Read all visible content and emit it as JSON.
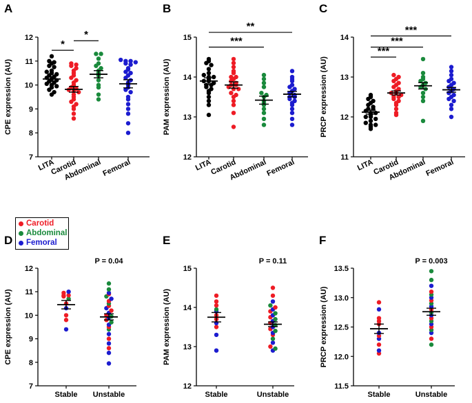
{
  "chart_data": [
    {
      "panel": "A",
      "type": "scatter",
      "ylabel": "CPE expression (AU)",
      "ylim": [
        7,
        12
      ],
      "yticks": [
        7,
        8,
        9,
        10,
        11,
        12
      ],
      "categories": [
        "LITA",
        "Carotid",
        "Abdominal",
        "Femoral"
      ],
      "groups": [
        {
          "name": "LITA",
          "color": "black",
          "mean": 10.25,
          "sem": 0.1,
          "values": [
            11.2,
            11.0,
            10.95,
            10.9,
            10.8,
            10.75,
            10.6,
            10.55,
            10.5,
            10.45,
            10.4,
            10.35,
            10.3,
            10.25,
            10.2,
            10.15,
            10.1,
            10.05,
            10.0,
            9.95,
            9.9,
            9.8,
            9.7,
            9.6
          ]
        },
        {
          "name": "Carotid",
          "color": "red",
          "mean": 9.82,
          "sem": 0.12,
          "values": [
            10.9,
            10.85,
            10.8,
            10.7,
            10.6,
            10.5,
            10.4,
            10.3,
            10.2,
            10.1,
            10.0,
            9.9,
            9.85,
            9.8,
            9.75,
            9.7,
            9.6,
            9.5,
            9.4,
            9.3,
            9.2,
            9.1,
            9.0,
            8.8,
            8.6
          ]
        },
        {
          "name": "Abdominal",
          "color": "green",
          "mean": 10.45,
          "sem": 0.15,
          "values": [
            11.3,
            11.3,
            11.1,
            10.9,
            10.8,
            10.7,
            10.6,
            10.5,
            10.4,
            10.2,
            10.0,
            9.9,
            9.6,
            9.4
          ]
        },
        {
          "name": "Femoral",
          "color": "blue",
          "mean": 10.05,
          "sem": 0.17,
          "values": [
            11.05,
            11.0,
            11.0,
            10.95,
            10.9,
            10.85,
            10.7,
            10.65,
            10.55,
            10.5,
            10.4,
            10.3,
            10.2,
            10.1,
            10.0,
            9.9,
            9.8,
            9.7,
            9.5,
            9.4,
            9.2,
            9.0,
            8.8,
            8.4,
            8.0
          ]
        }
      ],
      "significance": [
        {
          "from": "LITA",
          "to": "Carotid",
          "label": "*",
          "y": 11.45
        },
        {
          "from": "Carotid",
          "to": "Abdominal",
          "label": "*",
          "y": 11.85
        }
      ]
    },
    {
      "panel": "B",
      "type": "scatter",
      "ylabel": "PAM expression (AU)",
      "ylim": [
        12,
        15
      ],
      "yticks": [
        12,
        13,
        14,
        15
      ],
      "categories": [
        "LITA",
        "Carotid",
        "Abdominal",
        "Femoral"
      ],
      "groups": [
        {
          "name": "LITA",
          "color": "black",
          "mean": 13.9,
          "sem": 0.08,
          "values": [
            14.45,
            14.4,
            14.35,
            14.3,
            14.2,
            14.1,
            14.05,
            14.0,
            14.0,
            13.95,
            13.9,
            13.9,
            13.85,
            13.8,
            13.8,
            13.75,
            13.7,
            13.65,
            13.6,
            13.5,
            13.4,
            13.3,
            13.05
          ]
        },
        {
          "name": "Carotid",
          "color": "red",
          "mean": 13.8,
          "sem": 0.08,
          "values": [
            14.45,
            14.35,
            14.25,
            14.15,
            14.1,
            14.0,
            14.0,
            13.95,
            13.9,
            13.85,
            13.8,
            13.8,
            13.75,
            13.7,
            13.7,
            13.6,
            13.55,
            13.5,
            13.4,
            13.3,
            13.1,
            12.75
          ]
        },
        {
          "name": "Abdominal",
          "color": "green",
          "mean": 13.42,
          "sem": 0.1,
          "values": [
            14.05,
            13.95,
            13.85,
            13.75,
            13.6,
            13.55,
            13.5,
            13.4,
            13.35,
            13.3,
            13.2,
            13.1,
            12.95,
            12.8
          ]
        },
        {
          "name": "Femoral",
          "color": "blue",
          "mean": 13.57,
          "sem": 0.07,
          "values": [
            14.15,
            14.0,
            13.95,
            13.9,
            13.8,
            13.75,
            13.7,
            13.65,
            13.6,
            13.55,
            13.5,
            13.5,
            13.45,
            13.4,
            13.35,
            13.3,
            13.2,
            13.1,
            12.95,
            12.8
          ]
        }
      ],
      "significance": [
        {
          "from": "LITA",
          "to": "Abdominal",
          "label": "***",
          "y": 14.75
        },
        {
          "from": "LITA",
          "to": "Femoral",
          "label": "**",
          "y": 15.12
        }
      ]
    },
    {
      "panel": "C",
      "type": "scatter",
      "ylabel": "PRCP expression (AU)",
      "ylim": [
        11,
        14
      ],
      "yticks": [
        11,
        12,
        13,
        14
      ],
      "categories": [
        "LITA",
        "Carotid",
        "Abdominal",
        "Femoral"
      ],
      "groups": [
        {
          "name": "LITA",
          "color": "black",
          "mean": 12.12,
          "sem": 0.05,
          "values": [
            12.55,
            12.5,
            12.45,
            12.4,
            12.35,
            12.3,
            12.25,
            12.2,
            12.2,
            12.15,
            12.1,
            12.1,
            12.05,
            12.0,
            12.0,
            11.95,
            11.9,
            11.85,
            11.8,
            11.8,
            11.75,
            11.7
          ]
        },
        {
          "name": "Carotid",
          "color": "red",
          "mean": 12.6,
          "sem": 0.05,
          "values": [
            13.05,
            13.0,
            12.95,
            12.9,
            12.85,
            12.8,
            12.75,
            12.7,
            12.65,
            12.6,
            12.6,
            12.55,
            12.5,
            12.5,
            12.45,
            12.4,
            12.35,
            12.3,
            12.2,
            12.1,
            12.05
          ]
        },
        {
          "name": "Abdominal",
          "color": "green",
          "mean": 12.78,
          "sem": 0.08,
          "values": [
            13.45,
            13.1,
            13.0,
            12.95,
            12.9,
            12.85,
            12.8,
            12.75,
            12.7,
            12.6,
            12.5,
            12.4,
            11.9
          ]
        },
        {
          "name": "Femoral",
          "color": "blue",
          "mean": 12.68,
          "sem": 0.06,
          "values": [
            13.25,
            13.15,
            13.05,
            12.95,
            12.9,
            12.85,
            12.8,
            12.75,
            12.7,
            12.65,
            12.6,
            12.55,
            12.5,
            12.45,
            12.4,
            12.3,
            12.2,
            12.0
          ]
        }
      ],
      "significance": [
        {
          "from": "LITA",
          "to": "Carotid",
          "label": "***",
          "y": 13.5
        },
        {
          "from": "LITA",
          "to": "Abdominal",
          "label": "***",
          "y": 13.75
        },
        {
          "from": "LITA",
          "to": "Femoral",
          "label": "***",
          "y": 14.03
        }
      ]
    },
    {
      "panel": "D",
      "type": "scatter",
      "ylabel": "CPE expression (AU)",
      "ylim": [
        7,
        12
      ],
      "yticks": [
        7,
        8,
        9,
        10,
        11,
        12
      ],
      "categories": [
        "Stable",
        "Unstable"
      ],
      "pvalue": "P = 0.04",
      "groups": [
        {
          "name": "Stable",
          "mean": 10.45,
          "sem": 0.18,
          "points": [
            {
              "v": 10.95,
              "c": "red"
            },
            {
              "v": 10.85,
              "c": "red"
            },
            {
              "v": 10.85,
              "c": "red"
            },
            {
              "v": 10.8,
              "c": "red"
            },
            {
              "v": 11.0,
              "c": "blue"
            },
            {
              "v": 10.7,
              "c": "green"
            },
            {
              "v": 10.5,
              "c": "red"
            },
            {
              "v": 10.3,
              "c": "blue"
            },
            {
              "v": 10.0,
              "c": "red"
            },
            {
              "v": 9.8,
              "c": "red"
            },
            {
              "v": 9.4,
              "c": "blue"
            }
          ]
        },
        {
          "name": "Unstable",
          "mean": 9.93,
          "sem": 0.13,
          "points": [
            {
              "v": 11.35,
              "c": "green"
            },
            {
              "v": 11.1,
              "c": "green"
            },
            {
              "v": 10.95,
              "c": "blue"
            },
            {
              "v": 10.9,
              "c": "red"
            },
            {
              "v": 10.8,
              "c": "green"
            },
            {
              "v": 10.7,
              "c": "blue"
            },
            {
              "v": 10.6,
              "c": "red"
            },
            {
              "v": 10.5,
              "c": "green"
            },
            {
              "v": 10.4,
              "c": "red"
            },
            {
              "v": 10.3,
              "c": "blue"
            },
            {
              "v": 10.2,
              "c": "red"
            },
            {
              "v": 10.1,
              "c": "blue"
            },
            {
              "v": 10.0,
              "c": "red"
            },
            {
              "v": 9.95,
              "c": "green"
            },
            {
              "v": 9.9,
              "c": "blue"
            },
            {
              "v": 9.8,
              "c": "red"
            },
            {
              "v": 9.7,
              "c": "green"
            },
            {
              "v": 9.6,
              "c": "blue"
            },
            {
              "v": 9.5,
              "c": "red"
            },
            {
              "v": 9.4,
              "c": "green"
            },
            {
              "v": 9.2,
              "c": "blue"
            },
            {
              "v": 9.0,
              "c": "red"
            },
            {
              "v": 8.8,
              "c": "blue"
            },
            {
              "v": 8.6,
              "c": "red"
            },
            {
              "v": 8.4,
              "c": "blue"
            },
            {
              "v": 7.95,
              "c": "blue"
            }
          ]
        }
      ]
    },
    {
      "panel": "E",
      "type": "scatter",
      "ylabel": "PAM expression (AU)",
      "ylim": [
        12,
        15
      ],
      "yticks": [
        12,
        13,
        14,
        15
      ],
      "categories": [
        "Stable",
        "Unstable"
      ],
      "pvalue": "P = 0.11",
      "groups": [
        {
          "name": "Stable",
          "mean": 13.75,
          "sem": 0.12,
          "points": [
            {
              "v": 14.3,
              "c": "red"
            },
            {
              "v": 14.15,
              "c": "red"
            },
            {
              "v": 14.05,
              "c": "red"
            },
            {
              "v": 13.95,
              "c": "green"
            },
            {
              "v": 13.9,
              "c": "blue"
            },
            {
              "v": 13.8,
              "c": "red"
            },
            {
              "v": 13.7,
              "c": "red"
            },
            {
              "v": 13.6,
              "c": "blue"
            },
            {
              "v": 13.5,
              "c": "red"
            },
            {
              "v": 13.3,
              "c": "blue"
            },
            {
              "v": 12.9,
              "c": "blue"
            }
          ]
        },
        {
          "name": "Unstable",
          "mean": 13.57,
          "sem": 0.06,
          "points": [
            {
              "v": 14.5,
              "c": "red"
            },
            {
              "v": 14.3,
              "c": "red"
            },
            {
              "v": 14.15,
              "c": "blue"
            },
            {
              "v": 14.05,
              "c": "green"
            },
            {
              "v": 14.0,
              "c": "red"
            },
            {
              "v": 13.95,
              "c": "blue"
            },
            {
              "v": 13.9,
              "c": "red"
            },
            {
              "v": 13.85,
              "c": "green"
            },
            {
              "v": 13.8,
              "c": "blue"
            },
            {
              "v": 13.75,
              "c": "red"
            },
            {
              "v": 13.7,
              "c": "green"
            },
            {
              "v": 13.65,
              "c": "blue"
            },
            {
              "v": 13.6,
              "c": "red"
            },
            {
              "v": 13.55,
              "c": "green"
            },
            {
              "v": 13.5,
              "c": "blue"
            },
            {
              "v": 13.45,
              "c": "red"
            },
            {
              "v": 13.4,
              "c": "green"
            },
            {
              "v": 13.35,
              "c": "blue"
            },
            {
              "v": 13.3,
              "c": "red"
            },
            {
              "v": 13.2,
              "c": "green"
            },
            {
              "v": 13.1,
              "c": "blue"
            },
            {
              "v": 13.0,
              "c": "red"
            },
            {
              "v": 12.95,
              "c": "green"
            },
            {
              "v": 12.9,
              "c": "blue"
            }
          ]
        }
      ]
    },
    {
      "panel": "F",
      "type": "scatter",
      "ylabel": "PRCP expression (AU)",
      "ylim": [
        11.5,
        13.5
      ],
      "yticks": [
        11.5,
        12.0,
        12.5,
        13.0,
        13.5
      ],
      "categories": [
        "Stable",
        "Unstable"
      ],
      "pvalue": "P = 0.003",
      "groups": [
        {
          "name": "Stable",
          "mean": 12.47,
          "sem": 0.08,
          "points": [
            {
              "v": 12.92,
              "c": "red"
            },
            {
              "v": 12.8,
              "c": "blue"
            },
            {
              "v": 12.65,
              "c": "red"
            },
            {
              "v": 12.6,
              "c": "red"
            },
            {
              "v": 12.55,
              "c": "red"
            },
            {
              "v": 12.4,
              "c": "blue"
            },
            {
              "v": 12.35,
              "c": "red"
            },
            {
              "v": 12.3,
              "c": "blue"
            },
            {
              "v": 12.2,
              "c": "red"
            },
            {
              "v": 12.1,
              "c": "blue"
            },
            {
              "v": 12.05,
              "c": "red"
            }
          ]
        },
        {
          "name": "Unstable",
          "mean": 12.76,
          "sem": 0.06,
          "points": [
            {
              "v": 13.45,
              "c": "green"
            },
            {
              "v": 13.3,
              "c": "green"
            },
            {
              "v": 13.2,
              "c": "blue"
            },
            {
              "v": 13.1,
              "c": "red"
            },
            {
              "v": 13.05,
              "c": "green"
            },
            {
              "v": 13.0,
              "c": "blue"
            },
            {
              "v": 12.95,
              "c": "red"
            },
            {
              "v": 12.9,
              "c": "green"
            },
            {
              "v": 12.85,
              "c": "blue"
            },
            {
              "v": 12.8,
              "c": "red"
            },
            {
              "v": 12.75,
              "c": "green"
            },
            {
              "v": 12.7,
              "c": "blue"
            },
            {
              "v": 12.65,
              "c": "red"
            },
            {
              "v": 12.6,
              "c": "green"
            },
            {
              "v": 12.55,
              "c": "blue"
            },
            {
              "v": 12.5,
              "c": "red"
            },
            {
              "v": 12.45,
              "c": "green"
            },
            {
              "v": 12.4,
              "c": "blue"
            },
            {
              "v": 12.3,
              "c": "red"
            },
            {
              "v": 12.2,
              "c": "green"
            }
          ]
        }
      ]
    }
  ],
  "legend": [
    {
      "label": "Carotid",
      "color": "red"
    },
    {
      "label": "Abdominal",
      "color": "green"
    },
    {
      "label": "Femoral",
      "color": "blue"
    }
  ],
  "colors": {
    "black": "#000000",
    "red": "#ee1c25",
    "green": "#1a8a3c",
    "blue": "#1c1ccf"
  }
}
